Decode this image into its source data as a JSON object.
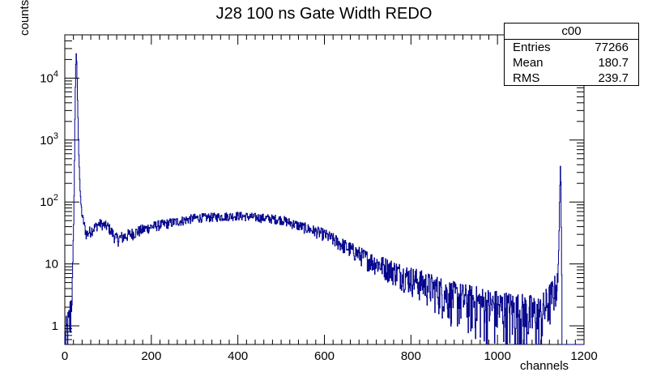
{
  "chart_data": {
    "type": "histogram",
    "title": "J28 100 ns Gate Width REDO",
    "xlabel": "channels",
    "ylabel": "counts",
    "xlim": [
      0,
      1200
    ],
    "ylim": [
      0.5,
      50000
    ],
    "log_y": true,
    "x_ticks": [
      "0",
      "200",
      "400",
      "600",
      "800",
      "1000",
      "1200"
    ],
    "y_ticks": [
      "1",
      "10",
      "10^2",
      "10^3",
      "10^4"
    ],
    "line_color": "#00008b",
    "stats_box": {
      "name": "c00",
      "rows": [
        {
          "label": "Entries",
          "value": "77266"
        },
        {
          "label": "Mean",
          "value": "180.7"
        },
        {
          "label": "RMS",
          "value": "239.7"
        }
      ]
    },
    "series_shape": {
      "x": [
        0,
        10,
        14,
        18,
        22,
        24,
        26,
        28,
        30,
        32,
        34,
        36,
        40,
        50,
        80,
        100,
        120,
        150,
        200,
        300,
        400,
        500,
        600,
        700,
        800,
        900,
        1000,
        1100,
        1140,
        1144,
        1146,
        1150
      ],
      "y": [
        0.5,
        1,
        2,
        5,
        200,
        5000,
        26000,
        15000,
        3000,
        800,
        300,
        120,
        60,
        30,
        45,
        40,
        25,
        30,
        40,
        55,
        60,
        52,
        30,
        12,
        6,
        3,
        2,
        1.5,
        5,
        150,
        450,
        0.5
      ]
    }
  }
}
